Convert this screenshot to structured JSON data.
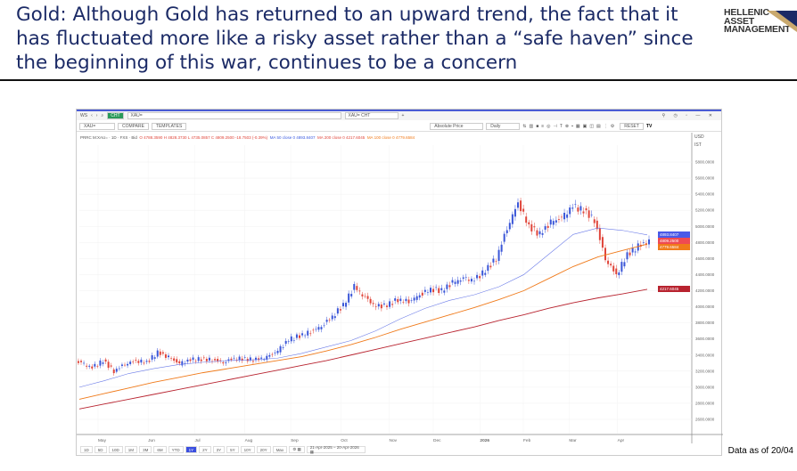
{
  "slide": {
    "title": "Gold: Although Gold has returned to an upward trend, the fact that it has fluctuated more like a risky asset rather than a “safe haven” since the beginning of this war, continues to be a concern",
    "logo_text": "HELLENIC ASSET MANAGEMENT",
    "data_as_of": "Data as of 20/04",
    "title_color": "#1b2a66"
  },
  "app": {
    "topbar": {
      "ws": "WS",
      "chart_tab": "CHT",
      "symbol_field": "XAU=",
      "window_tab": "XAU= CHT",
      "add": "+"
    },
    "toolbar": {
      "symbol": "XAU=",
      "compare": "COMPARE",
      "templates": "TEMPLATES",
      "price_mode": "Absolute Price",
      "interval": "Daily",
      "reset": "RESET",
      "currency": "USD",
      "currency_sub": "IST"
    },
    "legend": {
      "instrument": "PRRC M:XAU= · 1D · FXS · Bid",
      "o": "O 4788.3590",
      "h": "H 4828.3730",
      "l": "L 4735.0857",
      "c": "C 4809.2500 -18.7503 (-0.39%)",
      "ma50": "MA 50 close 0  4893.8407",
      "ma200": "MA 200 close 0  4217.6045",
      "ma100": "MA 100 close 0  4779.6584"
    },
    "range_buttons": [
      "1D",
      "5D",
      "10D",
      "1M",
      "3M",
      "6M",
      "YTD",
      "1Y",
      "2Y",
      "3Y",
      "5Y",
      "10Y",
      "20Y",
      "Max"
    ],
    "active_range": "1Y",
    "date_range": "21-Apr-2025 – 20-Apr-2026"
  },
  "chart_data": {
    "type": "candlestick",
    "ylim": [
      2500,
      5900
    ],
    "y_ticks": [
      2600,
      2800,
      3000,
      3200,
      3400,
      3600,
      3800,
      4000,
      4200,
      4400,
      4600,
      4800,
      5000,
      5200,
      5400,
      5600,
      5800
    ],
    "x_ticks": [
      "May",
      "Jun",
      "Jul",
      "Aug",
      "Sep",
      "Oct",
      "Nov",
      "Dec",
      "2026",
      "Feb",
      "Mar",
      "Apr"
    ],
    "grid": true,
    "weekly_close": [
      3300,
      3240,
      3330,
      3200,
      3290,
      3330,
      3310,
      3430,
      3370,
      3290,
      3340,
      3350,
      3340,
      3310,
      3360,
      3350,
      3340,
      3370,
      3450,
      3590,
      3640,
      3690,
      3760,
      3880,
      4020,
      4250,
      4110,
      4000,
      4020,
      4090,
      4070,
      4150,
      4220,
      4200,
      4300,
      4350,
      4330,
      4450,
      4600,
      4980,
      5300,
      5000,
      4900,
      5050,
      5100,
      5250,
      5200,
      5080,
      4600,
      4400,
      4650,
      4750,
      4809
    ],
    "series": [
      {
        "name": "MA 50",
        "color": "#6b7be8",
        "values": [
          3000,
          3080,
          3170,
          3230,
          3280,
          3310,
          3330,
          3340,
          3360,
          3420,
          3500,
          3580,
          3700,
          3850,
          3980,
          4080,
          4150,
          4250,
          4400,
          4650,
          4900,
          4980,
          4950,
          4893.8407
        ]
      },
      {
        "name": "MA 100",
        "color": "#f07a1a",
        "values": [
          2850,
          2920,
          2990,
          3060,
          3120,
          3180,
          3230,
          3280,
          3330,
          3380,
          3450,
          3530,
          3620,
          3720,
          3810,
          3900,
          3990,
          4090,
          4200,
          4350,
          4500,
          4620,
          4700,
          4779.6584
        ]
      },
      {
        "name": "MA 200",
        "color": "#b8232f",
        "values": [
          2730,
          2790,
          2850,
          2910,
          2970,
          3030,
          3090,
          3150,
          3210,
          3270,
          3330,
          3400,
          3470,
          3540,
          3610,
          3680,
          3750,
          3830,
          3900,
          3980,
          4050,
          4110,
          4160,
          4217.6045
        ]
      }
    ],
    "last_labels": [
      {
        "value": "4893.8407",
        "color": "#4a5ae8"
      },
      {
        "value": "4809.2500",
        "color": "#ef4a52"
      },
      {
        "value": "4779.6584",
        "color": "#f07a1a"
      },
      {
        "value": "4217.6045",
        "color": "#b8232f"
      }
    ],
    "up_color": "#3a56d8",
    "down_color": "#e0453a"
  }
}
